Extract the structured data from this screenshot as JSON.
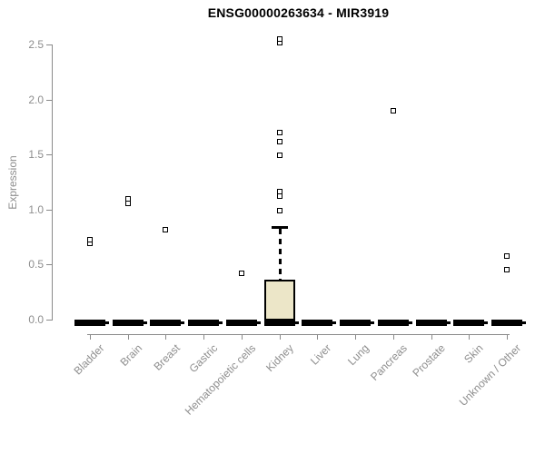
{
  "title": "ENSG00000263634 - MIR3919",
  "colors": {
    "title": "#000000",
    "axis": "#8a8a8a",
    "labels": "#8e8e8e",
    "box_fill": "#ece6c8",
    "box_border": "#000000",
    "zero_bar": "#000000",
    "point_border": "#000000",
    "background": "#ffffff"
  },
  "chart_data": {
    "type": "boxplot",
    "title": "ENSG00000263634 - MIR3919",
    "xlabel": "",
    "ylabel": "Expression",
    "ylim": [
      0.0,
      2.5
    ],
    "yticks": [
      0.0,
      0.5,
      1.0,
      1.5,
      2.0,
      2.5
    ],
    "grid": false,
    "legend": false,
    "categories": [
      "Bladder",
      "Brain",
      "Breast",
      "Gastric",
      "Hematopoietic cells",
      "Kidney",
      "Liver",
      "Lung",
      "Pancreas",
      "Prostate",
      "Skin",
      "Unknown / Other"
    ],
    "boxes": [
      {
        "category": "Bladder",
        "q1": 0,
        "median": 0,
        "q3": 0,
        "whisker_low": 0,
        "whisker_high": 0,
        "outliers": [
          0.69,
          0.73
        ]
      },
      {
        "category": "Brain",
        "q1": 0,
        "median": 0,
        "q3": 0,
        "whisker_low": 0,
        "whisker_high": 0,
        "outliers": [
          1.06,
          1.1
        ]
      },
      {
        "category": "Breast",
        "q1": 0,
        "median": 0,
        "q3": 0,
        "whisker_low": 0,
        "whisker_high": 0,
        "outliers": [
          0.82
        ]
      },
      {
        "category": "Gastric",
        "q1": 0,
        "median": 0,
        "q3": 0,
        "whisker_low": 0,
        "whisker_high": 0,
        "outliers": []
      },
      {
        "category": "Hematopoietic cells",
        "q1": 0,
        "median": 0,
        "q3": 0,
        "whisker_low": 0,
        "whisker_high": 0,
        "outliers": [
          0.42
        ]
      },
      {
        "category": "Kidney",
        "q1": 0,
        "median": 0,
        "q3": 0.36,
        "whisker_low": 0,
        "whisker_high": 0.85,
        "outliers": [
          0.99,
          1.12,
          1.16,
          1.49,
          1.62,
          1.7,
          2.52,
          2.55
        ]
      },
      {
        "category": "Liver",
        "q1": 0,
        "median": 0,
        "q3": 0,
        "whisker_low": 0,
        "whisker_high": 0,
        "outliers": []
      },
      {
        "category": "Lung",
        "q1": 0,
        "median": 0,
        "q3": 0,
        "whisker_low": 0,
        "whisker_high": 0,
        "outliers": []
      },
      {
        "category": "Pancreas",
        "q1": 0,
        "median": 0,
        "q3": 0,
        "whisker_low": 0,
        "whisker_high": 0,
        "outliers": [
          1.9
        ]
      },
      {
        "category": "Prostate",
        "q1": 0,
        "median": 0,
        "q3": 0,
        "whisker_low": 0,
        "whisker_high": 0,
        "outliers": []
      },
      {
        "category": "Skin",
        "q1": 0,
        "median": 0,
        "q3": 0,
        "whisker_low": 0,
        "whisker_high": 0,
        "outliers": []
      },
      {
        "category": "Unknown / Other",
        "q1": 0,
        "median": 0,
        "q3": 0,
        "whisker_low": 0,
        "whisker_high": 0,
        "outliers": [
          0.45,
          0.58
        ]
      }
    ]
  }
}
